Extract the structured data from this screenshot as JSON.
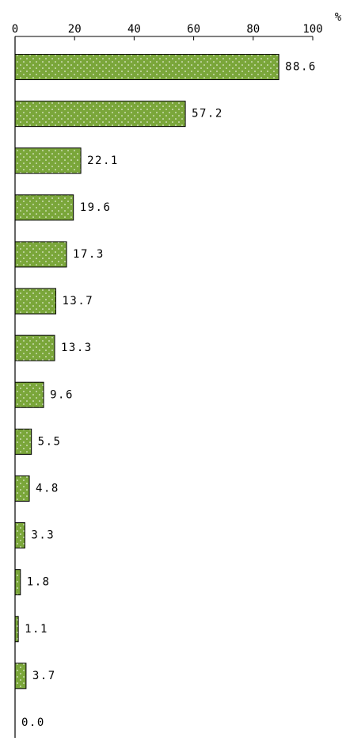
{
  "chart_data": {
    "type": "bar",
    "orientation": "horizontal",
    "x_unit": "%",
    "categories": [
      null,
      null,
      null,
      null,
      null,
      null,
      null,
      null,
      null,
      null,
      null,
      null,
      null,
      null,
      null
    ],
    "values": [
      88.6,
      57.2,
      22.1,
      19.6,
      17.3,
      13.7,
      13.3,
      9.6,
      5.5,
      4.8,
      3.3,
      1.8,
      1.1,
      3.7,
      0.0
    ],
    "value_labels": [
      "88.6",
      "57.2",
      "22.1",
      "19.6",
      "17.3",
      "13.7",
      "13.3",
      "9.6",
      "5.5",
      "4.8",
      "3.3",
      "1.8",
      "1.1",
      "3.7",
      "0.0"
    ],
    "color": "#7aa63a",
    "xlim": [
      0,
      100
    ],
    "xticks": [
      0,
      20,
      40,
      60,
      80,
      100
    ],
    "grid": false
  }
}
